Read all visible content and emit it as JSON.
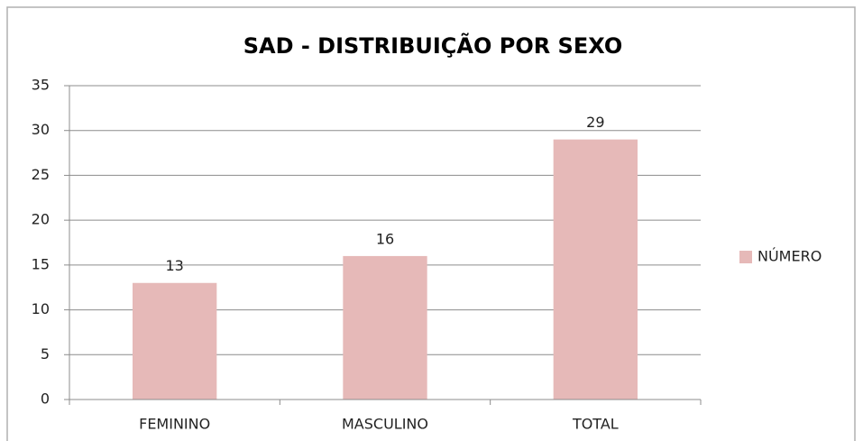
{
  "chart_data": {
    "type": "bar",
    "title": "SAD - DISTRIBUIÇÃO POR SEXO",
    "categories": [
      "FEMININO",
      "MASCULINO",
      "TOTAL"
    ],
    "series": [
      {
        "name": "NÚMERO",
        "color": "#e6b9b8",
        "values": [
          13,
          16,
          29
        ]
      }
    ],
    "ylim": [
      0,
      35
    ],
    "yticks": [
      0,
      5,
      10,
      15,
      20,
      25,
      30,
      35
    ],
    "grid": true,
    "legend": "right"
  }
}
